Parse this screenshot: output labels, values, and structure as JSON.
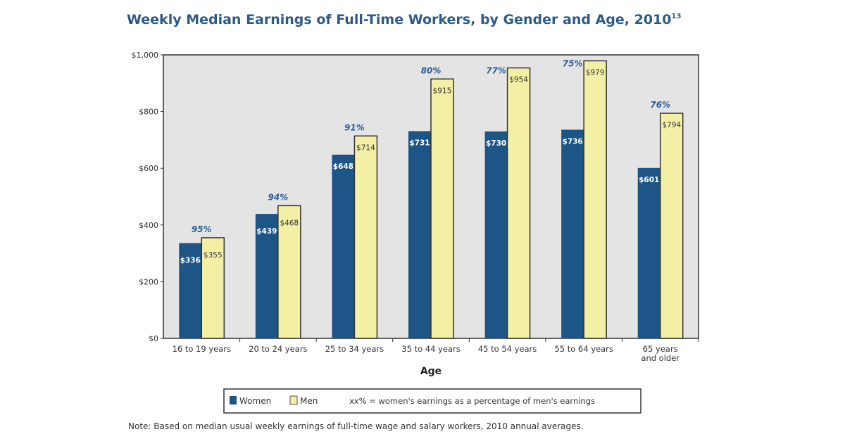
{
  "chart_data": {
    "type": "bar",
    "title": "Weekly Median Earnings of Full-Time Workers, by Gender and Age, 2010",
    "title_superscript": "13",
    "xlabel": "Age",
    "ylabel": "",
    "ylim": [
      0,
      1000
    ],
    "yticks": [
      "$0",
      "$200",
      "$400",
      "$600",
      "$800",
      "$1,000"
    ],
    "ytick_values": [
      0,
      200,
      400,
      600,
      800,
      1000
    ],
    "categories": [
      [
        "16 to 19 years"
      ],
      [
        "20 to 24 years"
      ],
      [
        "25 to 34 years"
      ],
      [
        "35 to 44 years"
      ],
      [
        "45 to 54 years"
      ],
      [
        "55 to 64 years"
      ],
      [
        "65 years",
        "and older"
      ]
    ],
    "series": [
      {
        "name": "Women",
        "color": "#1d5587",
        "values": [
          336,
          439,
          648,
          731,
          730,
          736,
          601
        ],
        "labels": [
          "$336",
          "$439",
          "$648",
          "$731",
          "$730",
          "$736",
          "$601"
        ]
      },
      {
        "name": "Men",
        "color": "#f3f0a6",
        "values": [
          355,
          468,
          714,
          915,
          954,
          979,
          794
        ],
        "labels": [
          "$355",
          "$468",
          "$714",
          "$915",
          "$954",
          "$979",
          "$794"
        ]
      }
    ],
    "percent_labels": [
      "95%",
      "94%",
      "91%",
      "80%",
      "77%",
      "75%",
      "76%"
    ],
    "legend": {
      "position": "bottom",
      "women": "Women",
      "men": "Men",
      "note": "xx% = women's earnings as a percentage of men's earnings"
    },
    "grid": false,
    "plot_background": "#e4e4e4",
    "percent_color": "#2b5d95"
  },
  "footnote": "Note: Based on median usual weekly earnings of full-time wage and salary workers, 2010 annual averages."
}
